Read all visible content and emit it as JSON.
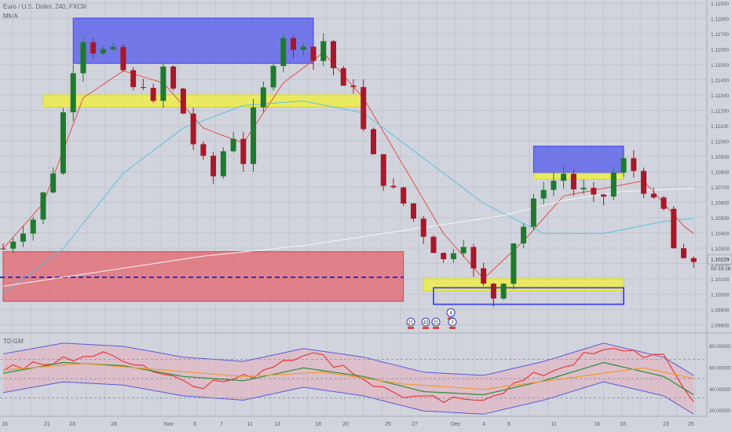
{
  "header": {
    "symbol": "Euro / U.S. Dollar, 240, FXCM",
    "indicator": "MMA",
    "sub_indicator": "TDIGM"
  },
  "price_axis": {
    "labels": [
      "1.11900",
      "1.11800",
      "1.11700",
      "1.11600",
      "1.11500",
      "1.11400",
      "1.11300",
      "1.11200",
      "1.11100",
      "1.11000",
      "1.10900",
      "1.10800",
      "1.10700",
      "1.10600",
      "1.10500",
      "1.10400",
      "1.10300",
      "1.10200",
      "1.10100",
      "1.10000",
      "1.09900",
      "1.09800"
    ],
    "current_price": "1.10229",
    "countdown": "02:33:18"
  },
  "sub_axis": {
    "labels": [
      "80.00000",
      "60.00000",
      "40.00000",
      "20.00000"
    ]
  },
  "time_axis": {
    "labels": [
      "16",
      "21",
      "23",
      "28",
      "Nov",
      "5",
      "7",
      "11",
      "13",
      "18",
      "20",
      "25",
      "27",
      "Dec",
      "4",
      "6",
      "11",
      "16",
      "18",
      "23",
      "25"
    ]
  },
  "event_badges": [
    "21",
    "43",
    "21",
    "4",
    "2"
  ],
  "colors": {
    "background": "#d1d4dc",
    "bull_candle": "#1f7a2e",
    "bear_candle": "#a8182a",
    "ma_red": "#e0504a",
    "ma_blue": "#5ec1e0",
    "ma_white": "#f5f5f5",
    "supply_box": "#3f47ee",
    "pivot_zone": "#f2f23a",
    "demand_box": "#e46a74"
  },
  "chart_data": [
    {
      "type": "candlestick",
      "title": "Euro / U.S. Dollar, 240, FXCM",
      "y_range": [
        1.0975,
        1.1195
      ],
      "close_path": [
        [
          0,
          1.103
        ],
        [
          3,
          1.105
        ],
        [
          5,
          1.1082
        ],
        [
          6,
          1.112
        ],
        [
          7,
          1.115
        ],
        [
          8,
          1.117
        ],
        [
          9,
          1.1162
        ],
        [
          11,
          1.116
        ],
        [
          12,
          1.1148
        ],
        [
          13,
          1.1135
        ],
        [
          14,
          1.114
        ],
        [
          15,
          1.1125
        ],
        [
          16,
          1.115
        ],
        [
          17,
          1.1135
        ],
        [
          18,
          1.112
        ],
        [
          19,
          1.11
        ],
        [
          20,
          1.1088
        ],
        [
          21,
          1.1078
        ],
        [
          22,
          1.1095
        ],
        [
          23,
          1.1105
        ],
        [
          24,
          1.1088
        ],
        [
          25,
          1.112
        ],
        [
          26,
          1.1135
        ],
        [
          27,
          1.1155
        ],
        [
          28,
          1.1172
        ],
        [
          29,
          1.116
        ],
        [
          30,
          1.1168
        ],
        [
          31,
          1.1155
        ],
        [
          32,
          1.1168
        ],
        [
          33,
          1.115
        ],
        [
          34,
          1.1135
        ],
        [
          35,
          1.114
        ],
        [
          36,
          1.1108
        ],
        [
          37,
          1.109
        ],
        [
          38,
          1.1075
        ],
        [
          39,
          1.1068
        ],
        [
          40,
          1.106
        ],
        [
          41,
          1.105
        ],
        [
          42,
          1.104
        ],
        [
          43,
          1.103
        ],
        [
          44,
          1.1022
        ],
        [
          45,
          1.103
        ],
        [
          46,
          1.1035
        ],
        [
          47,
          1.1015
        ],
        [
          48,
          1.1005
        ],
        [
          49,
          1.0998
        ],
        [
          50,
          1.101
        ],
        [
          51,
          1.1035
        ],
        [
          52,
          1.1045
        ],
        [
          53,
          1.106
        ],
        [
          54,
          1.1072
        ],
        [
          55,
          1.1075
        ],
        [
          56,
          1.108
        ],
        [
          57,
          1.107
        ],
        [
          58,
          1.1068
        ],
        [
          59,
          1.1062
        ],
        [
          60,
          1.1065
        ],
        [
          61,
          1.108
        ],
        [
          62,
          1.1088
        ],
        [
          63,
          1.1082
        ],
        [
          64,
          1.107
        ],
        [
          65,
          1.106
        ],
        [
          66,
          1.1055
        ],
        [
          67,
          1.103
        ],
        [
          68,
          1.102
        ],
        [
          69,
          1.1022
        ]
      ],
      "moving_averages": [
        {
          "color": "#e0504a",
          "path": [
            [
              0,
              1.103
            ],
            [
              4,
              1.106
            ],
            [
              8,
              1.113
            ],
            [
              12,
              1.1148
            ],
            [
              16,
              1.114
            ],
            [
              20,
              1.111
            ],
            [
              24,
              1.11
            ],
            [
              28,
              1.114
            ],
            [
              32,
              1.116
            ],
            [
              36,
              1.113
            ],
            [
              40,
              1.1085
            ],
            [
              44,
              1.104
            ],
            [
              48,
              1.101
            ],
            [
              52,
              1.1035
            ],
            [
              56,
              1.1065
            ],
            [
              60,
              1.107
            ],
            [
              64,
              1.1075
            ],
            [
              68,
              1.1045
            ],
            [
              69,
              1.104
            ]
          ]
        },
        {
          "color": "#5ec1e0",
          "path": [
            [
              0,
              1.1
            ],
            [
              6,
              1.103
            ],
            [
              12,
              1.108
            ],
            [
              18,
              1.111
            ],
            [
              24,
              1.1125
            ],
            [
              30,
              1.1128
            ],
            [
              36,
              1.112
            ],
            [
              42,
              1.109
            ],
            [
              48,
              1.106
            ],
            [
              54,
              1.104
            ],
            [
              60,
              1.104
            ],
            [
              66,
              1.1048
            ],
            [
              69,
              1.105
            ]
          ]
        },
        {
          "color": "#f5f5f5",
          "path": [
            [
              0,
              1.1005
            ],
            [
              10,
              1.1015
            ],
            [
              20,
              1.1025
            ],
            [
              30,
              1.1032
            ],
            [
              40,
              1.1042
            ],
            [
              50,
              1.1052
            ],
            [
              56,
              1.1062
            ],
            [
              62,
              1.1068
            ],
            [
              69,
              1.107
            ]
          ]
        }
      ],
      "zones": [
        {
          "kind": "supply",
          "from": [
            7,
            1.1183
          ],
          "to": [
            31,
            1.1153
          ]
        },
        {
          "kind": "pivot",
          "from": [
            4,
            1.1132
          ],
          "to": [
            36,
            1.1124
          ]
        },
        {
          "kind": "demand",
          "from": [
            0,
            1.1028
          ],
          "to": [
            40,
            1.0995
          ]
        },
        {
          "kind": "supply",
          "from": [
            53,
            1.1098
          ],
          "to": [
            62,
            1.108
          ]
        },
        {
          "kind": "pivot",
          "from": [
            53,
            1.108
          ],
          "to": [
            62,
            1.1076
          ]
        },
        {
          "kind": "pivot",
          "from": [
            42,
            1.101
          ],
          "to": [
            62,
            1.1002
          ]
        },
        {
          "kind": "demand-outline",
          "from": [
            43,
            1.1004
          ],
          "to": [
            62,
            1.0993
          ]
        }
      ],
      "dashed_level": 1.1011
    },
    {
      "type": "line",
      "title": "TDIGM",
      "y_range": [
        15,
        88
      ],
      "dashed_levels": [
        68,
        50,
        32
      ],
      "series": [
        {
          "color": "#e63b3b",
          "path": [
            [
              0,
              60
            ],
            [
              4,
              62
            ],
            [
              8,
              72
            ],
            [
              12,
              70
            ],
            [
              16,
              55
            ],
            [
              20,
              45
            ],
            [
              24,
              50
            ],
            [
              28,
              68
            ],
            [
              30,
              75
            ],
            [
              34,
              62
            ],
            [
              38,
              40
            ],
            [
              42,
              30
            ],
            [
              46,
              28
            ],
            [
              50,
              40
            ],
            [
              54,
              55
            ],
            [
              58,
              70
            ],
            [
              62,
              78
            ],
            [
              66,
              68
            ],
            [
              69,
              30
            ]
          ]
        },
        {
          "color": "#2e8b3a",
          "path": [
            [
              0,
              55
            ],
            [
              6,
              65
            ],
            [
              12,
              62
            ],
            [
              18,
              52
            ],
            [
              24,
              48
            ],
            [
              30,
              60
            ],
            [
              36,
              52
            ],
            [
              42,
              38
            ],
            [
              48,
              35
            ],
            [
              54,
              48
            ],
            [
              60,
              65
            ],
            [
              66,
              52
            ],
            [
              69,
              35
            ]
          ]
        },
        {
          "color": "#ee9b32",
          "path": [
            [
              0,
              58
            ],
            [
              8,
              64
            ],
            [
              16,
              58
            ],
            [
              24,
              52
            ],
            [
              32,
              56
            ],
            [
              40,
              45
            ],
            [
              48,
              40
            ],
            [
              56,
              50
            ],
            [
              64,
              60
            ],
            [
              69,
              50
            ]
          ]
        }
      ]
    }
  ]
}
